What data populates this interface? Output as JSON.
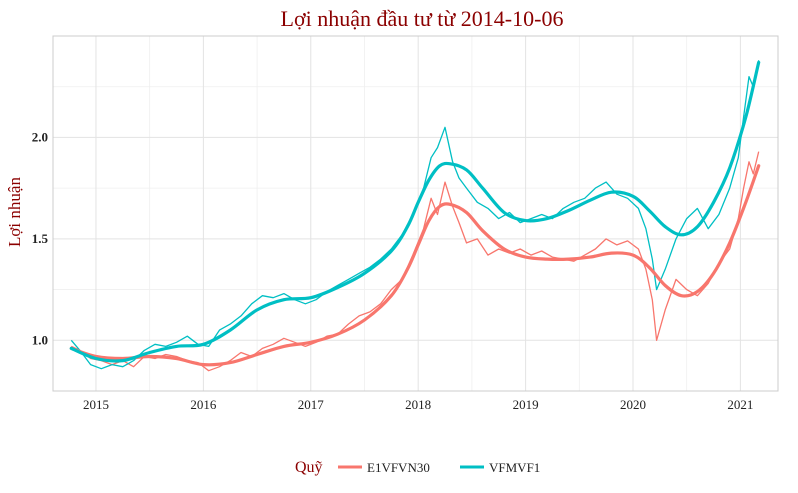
{
  "chart_data": {
    "type": "line",
    "title": "Lợi nhuận đầu tư từ 2014-10-06",
    "xlabel": "",
    "ylabel": "Lợi nhuận",
    "xlim": [
      2014.6,
      2021.35
    ],
    "ylim": [
      0.75,
      2.5
    ],
    "x_ticks": [
      2015,
      2016,
      2017,
      2018,
      2019,
      2020,
      2021
    ],
    "x_tick_labels": [
      "2015",
      "2016",
      "2017",
      "2018",
      "2019",
      "2020",
      "2021"
    ],
    "y_ticks": [
      1.0,
      1.5,
      2.0
    ],
    "y_tick_labels": [
      "1.0",
      "1.5",
      "2.0"
    ],
    "grid": true,
    "legend": {
      "title": "Quỹ",
      "position": "bottom"
    },
    "series": [
      {
        "name": "E1VFVN30",
        "color": "#F8766D",
        "raw": {
          "x": [
            2014.77,
            2014.85,
            2014.95,
            2015.05,
            2015.15,
            2015.25,
            2015.35,
            2015.45,
            2015.55,
            2015.65,
            2015.75,
            2015.85,
            2015.95,
            2016.05,
            2016.15,
            2016.25,
            2016.35,
            2016.45,
            2016.55,
            2016.65,
            2016.75,
            2016.85,
            2016.95,
            2017.05,
            2017.15,
            2017.25,
            2017.35,
            2017.45,
            2017.55,
            2017.65,
            2017.75,
            2017.85,
            2017.95,
            2018.05,
            2018.12,
            2018.18,
            2018.25,
            2018.32,
            2018.38,
            2018.45,
            2018.55,
            2018.65,
            2018.75,
            2018.85,
            2018.95,
            2019.05,
            2019.15,
            2019.25,
            2019.35,
            2019.45,
            2019.55,
            2019.65,
            2019.75,
            2019.85,
            2019.95,
            2020.05,
            2020.12,
            2020.18,
            2020.22,
            2020.3,
            2020.4,
            2020.5,
            2020.6,
            2020.7,
            2020.8,
            2020.9,
            2020.98,
            2021.03,
            2021.08,
            2021.12,
            2021.17
          ],
          "y": [
            0.97,
            0.95,
            0.91,
            0.9,
            0.88,
            0.9,
            0.87,
            0.92,
            0.91,
            0.93,
            0.92,
            0.9,
            0.89,
            0.85,
            0.87,
            0.9,
            0.94,
            0.92,
            0.96,
            0.98,
            1.01,
            0.99,
            0.97,
            0.99,
            1.02,
            1.03,
            1.08,
            1.12,
            1.14,
            1.18,
            1.25,
            1.3,
            1.42,
            1.55,
            1.7,
            1.62,
            1.78,
            1.66,
            1.58,
            1.48,
            1.5,
            1.42,
            1.45,
            1.43,
            1.45,
            1.42,
            1.44,
            1.41,
            1.4,
            1.39,
            1.42,
            1.45,
            1.5,
            1.47,
            1.49,
            1.45,
            1.35,
            1.2,
            1.0,
            1.15,
            1.3,
            1.25,
            1.22,
            1.28,
            1.38,
            1.45,
            1.6,
            1.75,
            1.88,
            1.82,
            1.93
          ]
        },
        "smooth": {
          "x": [
            2014.77,
            2015.0,
            2015.25,
            2015.5,
            2015.75,
            2016.0,
            2016.25,
            2016.5,
            2016.75,
            2017.0,
            2017.25,
            2017.5,
            2017.75,
            2017.9,
            2018.0,
            2018.1,
            2018.2,
            2018.3,
            2018.45,
            2018.6,
            2018.8,
            2019.0,
            2019.2,
            2019.4,
            2019.6,
            2019.8,
            2020.0,
            2020.15,
            2020.3,
            2020.45,
            2020.6,
            2020.75,
            2020.9,
            2021.05,
            2021.17
          ],
          "y": [
            0.96,
            0.92,
            0.91,
            0.92,
            0.91,
            0.88,
            0.89,
            0.93,
            0.97,
            0.99,
            1.03,
            1.1,
            1.22,
            1.35,
            1.47,
            1.59,
            1.66,
            1.67,
            1.63,
            1.54,
            1.45,
            1.41,
            1.4,
            1.4,
            1.41,
            1.43,
            1.42,
            1.36,
            1.27,
            1.22,
            1.24,
            1.33,
            1.48,
            1.68,
            1.86
          ]
        }
      },
      {
        "name": "VFMVF1",
        "color": "#00BFC4",
        "raw": {
          "x": [
            2014.77,
            2014.85,
            2014.95,
            2015.05,
            2015.15,
            2015.25,
            2015.35,
            2015.45,
            2015.55,
            2015.65,
            2015.75,
            2015.85,
            2015.95,
            2016.05,
            2016.15,
            2016.25,
            2016.35,
            2016.45,
            2016.55,
            2016.65,
            2016.75,
            2016.85,
            2016.95,
            2017.05,
            2017.15,
            2017.25,
            2017.35,
            2017.45,
            2017.55,
            2017.65,
            2017.75,
            2017.85,
            2017.95,
            2018.05,
            2018.12,
            2018.18,
            2018.25,
            2018.32,
            2018.38,
            2018.45,
            2018.55,
            2018.65,
            2018.75,
            2018.85,
            2018.95,
            2019.05,
            2019.15,
            2019.25,
            2019.35,
            2019.45,
            2019.55,
            2019.65,
            2019.75,
            2019.85,
            2019.95,
            2020.05,
            2020.12,
            2020.18,
            2020.22,
            2020.3,
            2020.4,
            2020.5,
            2020.6,
            2020.7,
            2020.8,
            2020.9,
            2020.98,
            2021.03,
            2021.08,
            2021.12,
            2021.17
          ],
          "y": [
            1.0,
            0.95,
            0.88,
            0.86,
            0.88,
            0.87,
            0.9,
            0.95,
            0.98,
            0.97,
            0.99,
            1.02,
            0.98,
            0.97,
            1.05,
            1.08,
            1.12,
            1.18,
            1.22,
            1.21,
            1.23,
            1.2,
            1.18,
            1.2,
            1.24,
            1.27,
            1.3,
            1.33,
            1.36,
            1.4,
            1.45,
            1.52,
            1.62,
            1.75,
            1.9,
            1.95,
            2.05,
            1.88,
            1.8,
            1.75,
            1.68,
            1.65,
            1.6,
            1.63,
            1.58,
            1.6,
            1.62,
            1.6,
            1.65,
            1.68,
            1.7,
            1.75,
            1.78,
            1.72,
            1.7,
            1.65,
            1.55,
            1.4,
            1.25,
            1.35,
            1.5,
            1.6,
            1.65,
            1.55,
            1.62,
            1.75,
            1.9,
            2.1,
            2.3,
            2.25,
            2.38
          ]
        },
        "smooth": {
          "x": [
            2014.77,
            2015.0,
            2015.25,
            2015.5,
            2015.75,
            2016.0,
            2016.25,
            2016.5,
            2016.75,
            2017.0,
            2017.25,
            2017.5,
            2017.75,
            2017.9,
            2018.0,
            2018.1,
            2018.2,
            2018.3,
            2018.45,
            2018.6,
            2018.8,
            2019.0,
            2019.2,
            2019.4,
            2019.6,
            2019.8,
            2020.0,
            2020.15,
            2020.3,
            2020.45,
            2020.6,
            2020.75,
            2020.9,
            2021.05,
            2021.17
          ],
          "y": [
            0.96,
            0.91,
            0.9,
            0.94,
            0.97,
            0.98,
            1.05,
            1.15,
            1.2,
            1.21,
            1.26,
            1.33,
            1.44,
            1.56,
            1.68,
            1.79,
            1.86,
            1.87,
            1.84,
            1.75,
            1.63,
            1.59,
            1.6,
            1.64,
            1.69,
            1.73,
            1.71,
            1.64,
            1.56,
            1.52,
            1.56,
            1.68,
            1.85,
            2.1,
            2.37
          ]
        }
      }
    ]
  }
}
